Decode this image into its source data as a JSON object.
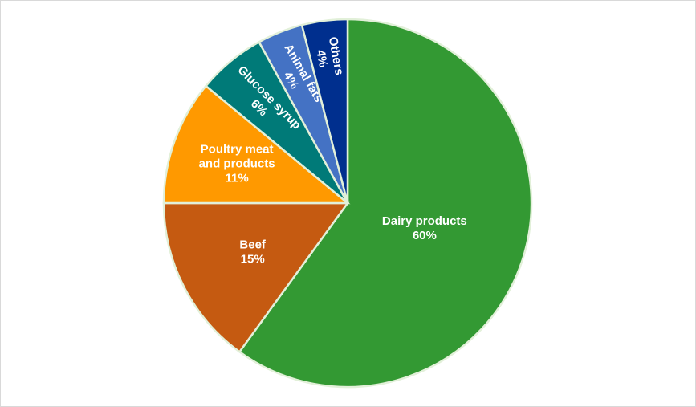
{
  "chart_data": {
    "type": "pie",
    "title": "",
    "legend": "none",
    "start": "12 o'clock, clockwise",
    "slices": [
      {
        "label_lines": [
          "Dairy products"
        ],
        "value": 60,
        "value_label": "60%",
        "color": "#339933"
      },
      {
        "label_lines": [
          "Beef"
        ],
        "value": 15,
        "value_label": "15%",
        "color": "#c55a11"
      },
      {
        "label_lines": [
          "Poultry meat",
          "and products"
        ],
        "value": 11,
        "value_label": "11%",
        "color": "#ff9900"
      },
      {
        "label_lines": [
          "Glucose syrup"
        ],
        "value": 6,
        "value_label": "6%",
        "color": "#007a78"
      },
      {
        "label_lines": [
          "Animal fats"
        ],
        "value": 4,
        "value_label": "4%",
        "color": "#4472c4"
      },
      {
        "label_lines": [
          "Others"
        ],
        "value": 4,
        "value_label": "4%",
        "color": "#002f8e"
      }
    ]
  }
}
